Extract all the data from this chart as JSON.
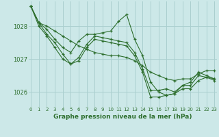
{
  "xlabel": "Graphe pression niveau de la mer (hPa)",
  "background_color": "#cce8e8",
  "grid_color": "#aacfcf",
  "line_color": "#2d6e2d",
  "x_ticks": [
    0,
    1,
    2,
    3,
    4,
    5,
    6,
    7,
    8,
    9,
    10,
    11,
    12,
    13,
    14,
    15,
    16,
    17,
    18,
    19,
    20,
    21,
    22,
    23
  ],
  "xlim": [
    -0.3,
    23.3
  ],
  "ylim": [
    1025.55,
    1028.75
  ],
  "yticks": [
    1026,
    1027,
    1028
  ],
  "lines": [
    {
      "x": [
        0,
        1,
        2,
        3,
        4,
        5,
        6,
        7,
        8,
        9,
        10,
        11,
        12,
        13,
        14,
        15,
        16,
        17,
        18,
        19,
        20,
        21,
        22,
        23
      ],
      "y": [
        1028.6,
        1028.1,
        1028.0,
        1027.85,
        1027.7,
        1027.55,
        1027.4,
        1027.3,
        1027.2,
        1027.15,
        1027.1,
        1027.1,
        1027.05,
        1026.95,
        1026.8,
        1026.6,
        1026.5,
        1026.4,
        1026.35,
        1026.4,
        1026.4,
        1026.55,
        1026.65,
        1026.65
      ]
    },
    {
      "x": [
        0,
        1,
        2,
        3,
        4,
        5,
        6,
        7,
        8,
        9,
        10,
        11,
        12,
        13,
        14,
        15,
        16,
        17,
        18,
        19,
        20,
        21,
        22,
        23
      ],
      "y": [
        1028.6,
        1028.1,
        1027.9,
        1027.6,
        1027.35,
        1027.2,
        1027.55,
        1027.75,
        1027.75,
        1027.8,
        1027.85,
        1028.15,
        1028.35,
        1027.6,
        1027.1,
        1026.3,
        1026.0,
        1025.9,
        1025.95,
        1026.1,
        1026.1,
        1026.35,
        1026.45,
        1026.4
      ]
    },
    {
      "x": [
        0,
        1,
        2,
        3,
        4,
        5,
        6,
        7,
        8,
        9,
        10,
        11,
        12,
        13,
        14,
        15,
        16,
        17,
        18,
        19,
        20,
        21,
        22,
        23
      ],
      "y": [
        1028.6,
        1028.1,
        1027.75,
        1027.5,
        1027.15,
        1026.85,
        1027.05,
        1027.45,
        1027.7,
        1027.65,
        1027.6,
        1027.55,
        1027.5,
        1027.2,
        1026.7,
        1026.05,
        1026.05,
        1026.1,
        1026.0,
        1026.2,
        1026.3,
        1026.6,
        1026.5,
        1026.4
      ]
    },
    {
      "x": [
        0,
        1,
        2,
        3,
        4,
        5,
        6,
        7,
        8,
        9,
        10,
        11,
        12,
        13,
        14,
        15,
        16,
        17,
        18,
        19,
        20,
        21,
        22,
        23
      ],
      "y": [
        1028.6,
        1028.0,
        1027.7,
        1027.35,
        1027.0,
        1026.85,
        1026.95,
        1027.35,
        1027.6,
        1027.55,
        1027.5,
        1027.45,
        1027.4,
        1027.1,
        1026.6,
        1025.85,
        1025.85,
        1025.9,
        1025.95,
        1026.2,
        1026.2,
        1026.5,
        1026.45,
        1026.35
      ]
    }
  ]
}
